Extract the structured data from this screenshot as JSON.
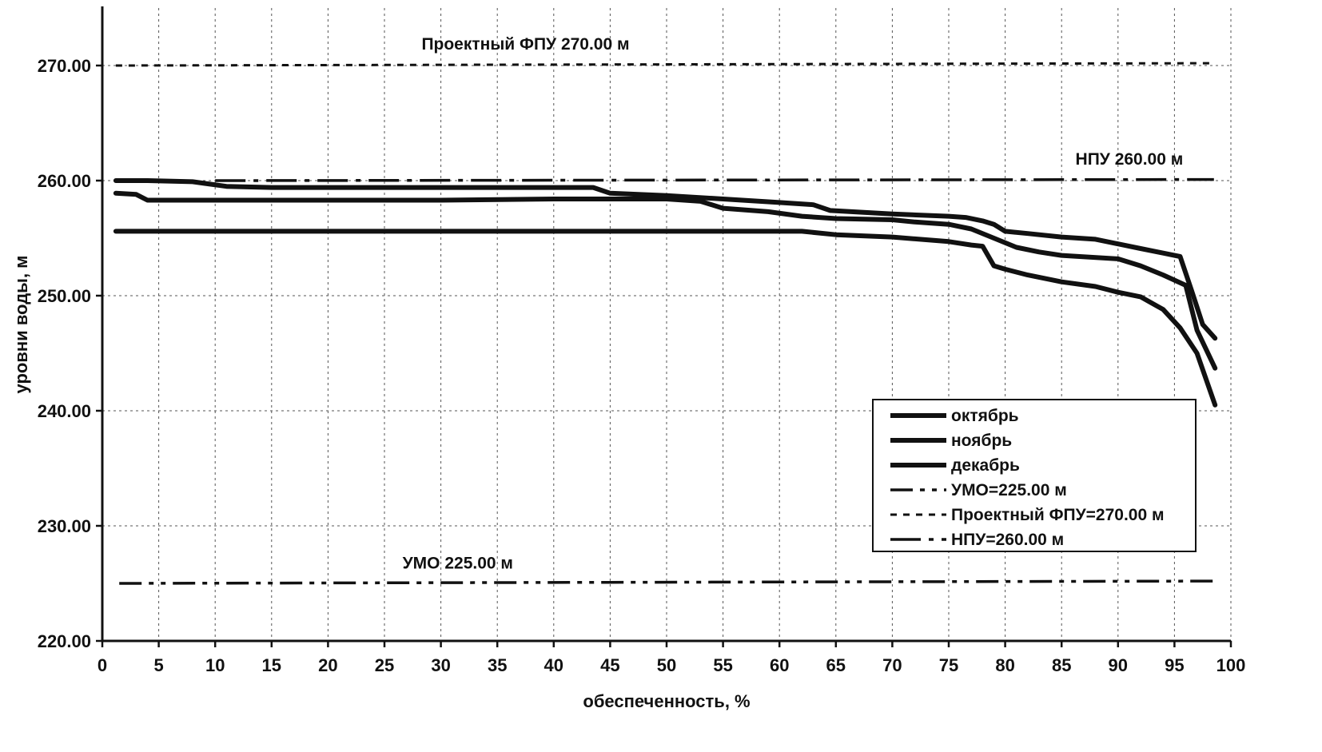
{
  "chart_data": {
    "type": "line",
    "title": "",
    "xlabel": "обеспеченность, %",
    "ylabel": "уровни воды, м",
    "xlim": [
      0,
      100
    ],
    "ylim": [
      220,
      275
    ],
    "x_ticks": [
      0,
      5,
      10,
      15,
      20,
      25,
      30,
      35,
      40,
      45,
      50,
      55,
      60,
      65,
      70,
      75,
      80,
      85,
      90,
      95,
      100
    ],
    "y_ticks": [
      "220.00",
      "230.00",
      "240.00",
      "250.00",
      "260.00",
      "270.00"
    ],
    "grid": true,
    "legend_position": "bottom-right",
    "series": [
      {
        "name": "октябрь",
        "style": "solid",
        "points": [
          [
            1.2,
            260.0
          ],
          [
            4,
            260.0
          ],
          [
            8,
            259.9
          ],
          [
            11,
            259.5
          ],
          [
            15,
            259.4
          ],
          [
            25,
            259.4
          ],
          [
            35,
            259.4
          ],
          [
            43.5,
            259.4
          ],
          [
            45,
            258.9
          ],
          [
            50,
            258.7
          ],
          [
            55,
            258.4
          ],
          [
            60,
            258.1
          ],
          [
            63,
            257.9
          ],
          [
            64.5,
            257.4
          ],
          [
            70,
            257.1
          ],
          [
            75,
            256.9
          ],
          [
            76.5,
            256.8
          ],
          [
            78,
            256.5
          ],
          [
            79,
            256.2
          ],
          [
            80,
            255.6
          ],
          [
            82,
            255.4
          ],
          [
            85,
            255.1
          ],
          [
            88,
            254.9
          ],
          [
            90,
            254.5
          ],
          [
            92,
            254.1
          ],
          [
            94,
            253.7
          ],
          [
            95.5,
            253.4
          ],
          [
            96.5,
            250.5
          ],
          [
            97.5,
            247.5
          ],
          [
            98.6,
            246.3
          ]
        ]
      },
      {
        "name": "ноябрь",
        "style": "solid",
        "points": [
          [
            1.2,
            258.9
          ],
          [
            3,
            258.8
          ],
          [
            4,
            258.3
          ],
          [
            10,
            258.3
          ],
          [
            20,
            258.3
          ],
          [
            30,
            258.3
          ],
          [
            40,
            258.4
          ],
          [
            45,
            258.4
          ],
          [
            50,
            258.4
          ],
          [
            53,
            258.2
          ],
          [
            55,
            257.6
          ],
          [
            59,
            257.3
          ],
          [
            62,
            256.9
          ],
          [
            65,
            256.7
          ],
          [
            70,
            256.6
          ],
          [
            72,
            256.4
          ],
          [
            75,
            256.2
          ],
          [
            77,
            255.8
          ],
          [
            79,
            255.0
          ],
          [
            81,
            254.2
          ],
          [
            83,
            253.8
          ],
          [
            85,
            253.5
          ],
          [
            90,
            253.2
          ],
          [
            92,
            252.6
          ],
          [
            94,
            251.8
          ],
          [
            96,
            250.9
          ],
          [
            97,
            247.0
          ],
          [
            98.6,
            243.7
          ]
        ]
      },
      {
        "name": "декабрь",
        "style": "solid",
        "points": [
          [
            1.2,
            255.6
          ],
          [
            10,
            255.6
          ],
          [
            20,
            255.6
          ],
          [
            30,
            255.6
          ],
          [
            40,
            255.6
          ],
          [
            50,
            255.6
          ],
          [
            60,
            255.6
          ],
          [
            62,
            255.6
          ],
          [
            65,
            255.3
          ],
          [
            70,
            255.1
          ],
          [
            75,
            254.7
          ],
          [
            77,
            254.4
          ],
          [
            78,
            254.3
          ],
          [
            79,
            252.6
          ],
          [
            80,
            252.3
          ],
          [
            82,
            251.8
          ],
          [
            85,
            251.2
          ],
          [
            88,
            250.8
          ],
          [
            90,
            250.3
          ],
          [
            92,
            249.9
          ],
          [
            94,
            248.8
          ],
          [
            95.5,
            247.2
          ],
          [
            97,
            245.0
          ],
          [
            98.6,
            240.5
          ]
        ]
      },
      {
        "name": "УМО=225.00 м",
        "style": "dash-dot-dot",
        "points": [
          [
            1.5,
            225.0
          ],
          [
            98.5,
            225.2
          ]
        ]
      },
      {
        "name": "Проектный ФПУ=270.00 м",
        "style": "dotted",
        "points": [
          [
            1.2,
            270.0
          ],
          [
            98.5,
            270.2
          ]
        ]
      },
      {
        "name": "НПУ=260.00 м",
        "style": "long-dash-dot",
        "points": [
          [
            10,
            260.0
          ],
          [
            98.5,
            260.1
          ]
        ]
      }
    ],
    "annotations": [
      {
        "text": "Проектный ФПУ 270.00 м",
        "x": 37.5,
        "y": 271.4
      },
      {
        "text": "НПУ 260.00 м",
        "x": 91,
        "y": 261.4
      },
      {
        "text": "УМО 225.00 м",
        "x": 31.5,
        "y": 226.3
      }
    ]
  }
}
